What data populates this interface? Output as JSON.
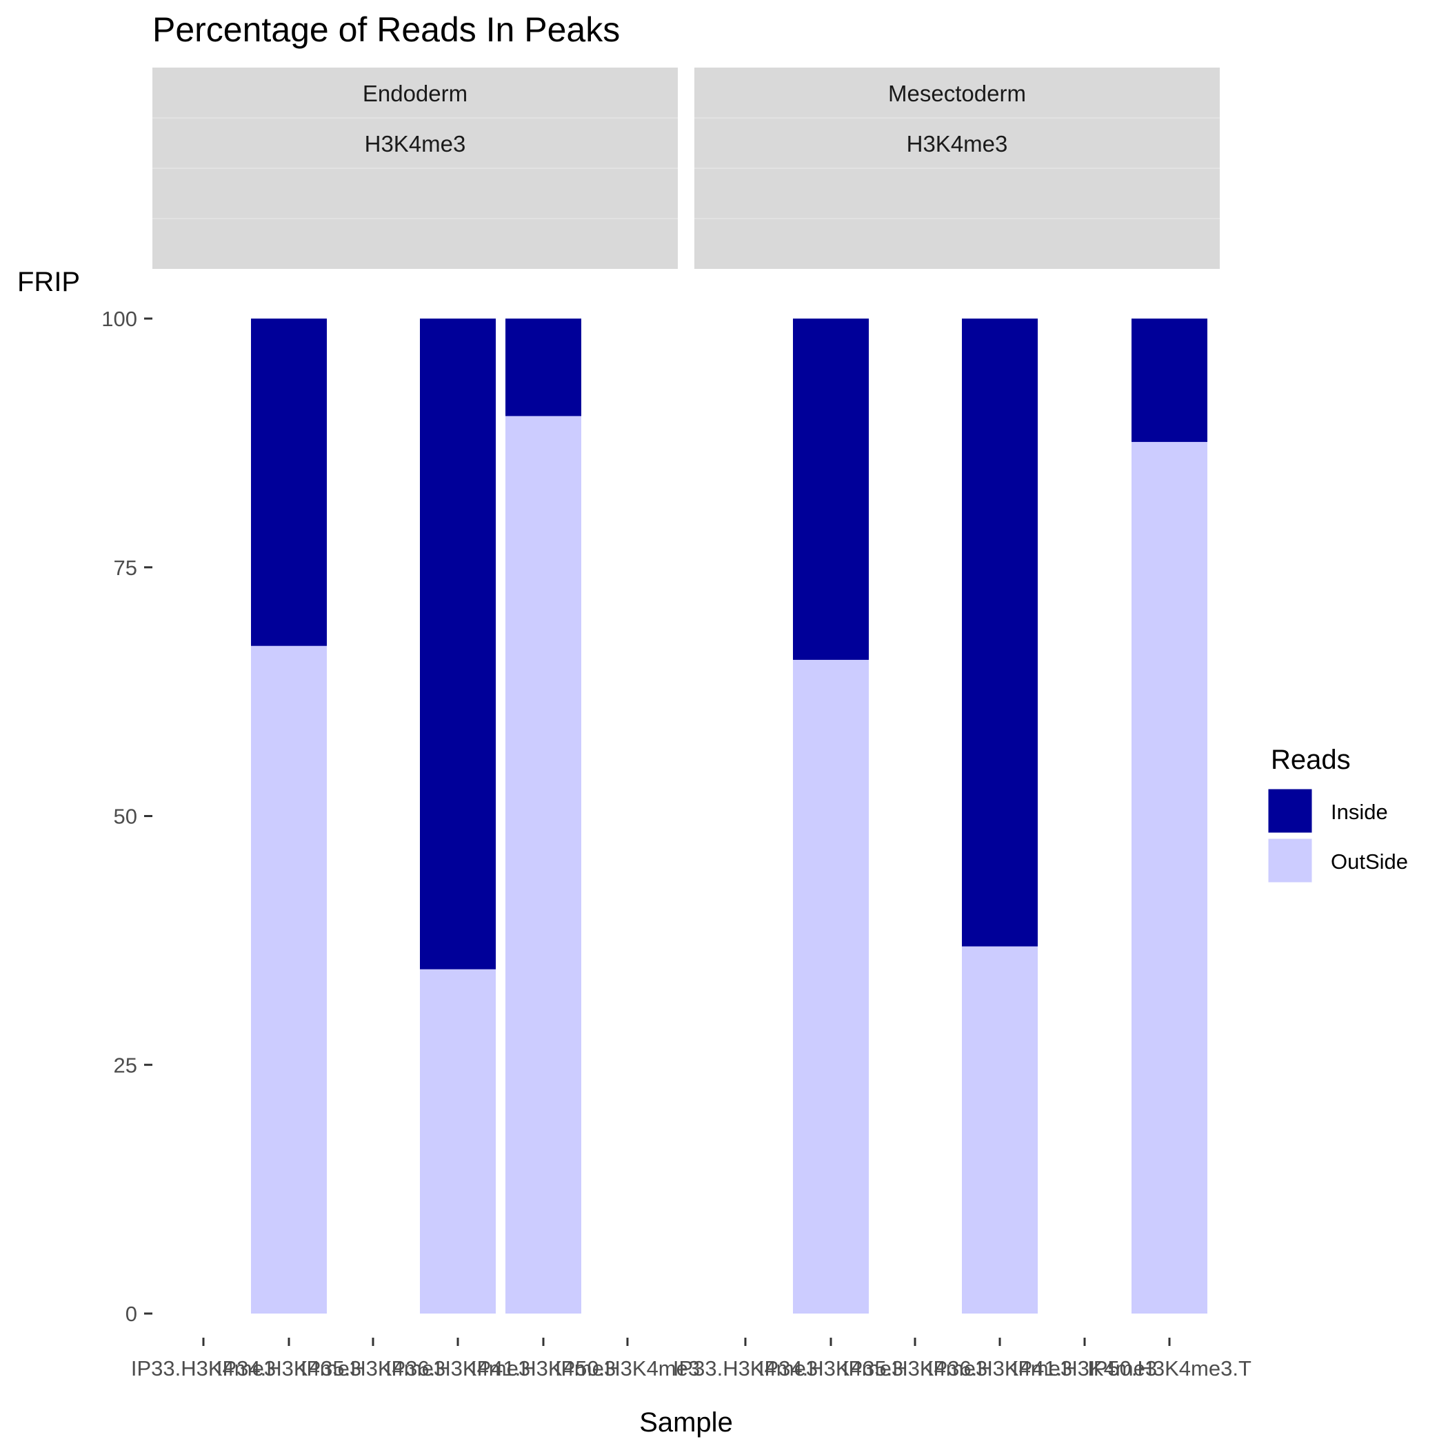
{
  "chart_data": {
    "type": "bar",
    "stacked": true,
    "title": "Percentage of Reads In Peaks",
    "xlabel": "Sample",
    "ylabel": "FRIP",
    "ylim": [
      0,
      100
    ],
    "yticks": [
      0,
      25,
      50,
      75,
      100
    ],
    "grid": false,
    "legend": {
      "title": "Reads",
      "position": "right",
      "entries": [
        {
          "name": "Inside",
          "color": "#000099"
        },
        {
          "name": "OutSide",
          "color": "#ccccff"
        }
      ]
    },
    "panels": [
      {
        "strip": [
          "Endoderm",
          "H3K4me3",
          "",
          ""
        ],
        "tick_labels": [
          "IP33.H3K4me3",
          "IP34.H3K4me3",
          "IP35.H3K4me3",
          "IP36.H3K4me3",
          "IP41.H3K4me3",
          "IP50.H3K4me3"
        ],
        "bars": [
          {
            "slot": 1,
            "inside": 32.9,
            "outside": 67.1
          },
          {
            "slot": 3,
            "inside": 65.4,
            "outside": 34.6
          },
          {
            "slot": 4,
            "inside": 9.8,
            "outside": 90.2
          }
        ]
      },
      {
        "strip": [
          "Mesectoderm",
          "H3K4me3",
          "",
          ""
        ],
        "tick_labels": [
          "IP33.H3K4me3",
          "IP34.H3K4me3",
          "IP35.H3K4me3",
          "IP36.H3K4me3",
          "IP41.H3K4me3",
          "IP50.H3K4me3.T"
        ],
        "bars": [
          {
            "slot": 1,
            "inside": 34.3,
            "outside": 65.7
          },
          {
            "slot": 3,
            "inside": 63.1,
            "outside": 36.9
          },
          {
            "slot": 5,
            "inside": 12.4,
            "outside": 87.6
          }
        ]
      }
    ]
  }
}
